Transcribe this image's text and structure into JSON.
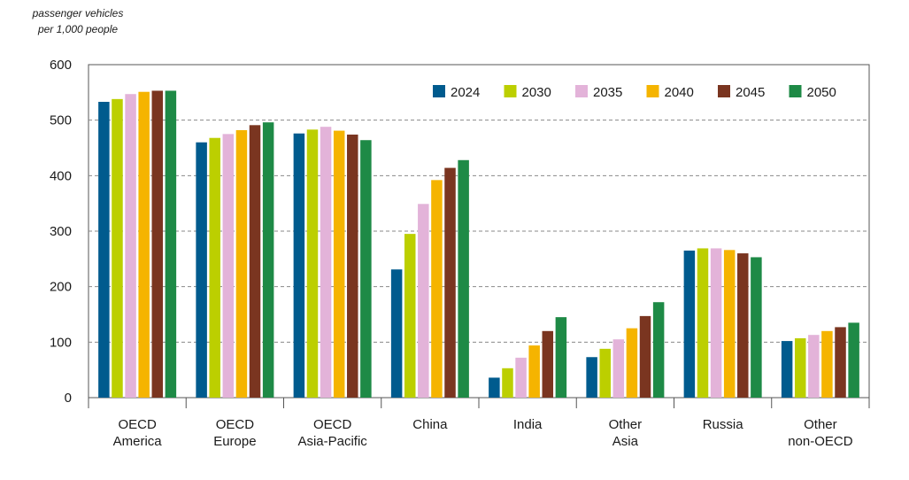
{
  "chart_data": {
    "type": "bar",
    "title": "",
    "ylabel_lines": [
      "passenger vehicles",
      "per 1,000 people"
    ],
    "xlabel": "",
    "ylim": [
      0,
      600
    ],
    "yticks": [
      0,
      100,
      200,
      300,
      400,
      500,
      600
    ],
    "grid": "horizontal-dashed",
    "legend_position": "top-right",
    "categories": [
      [
        "OECD",
        "America"
      ],
      [
        "OECD",
        "Europe"
      ],
      [
        "OECD",
        "Asia-Pacific"
      ],
      [
        "China"
      ],
      [
        "India"
      ],
      [
        "Other",
        "Asia"
      ],
      [
        "Russia"
      ],
      [
        "Other",
        "non-OECD"
      ]
    ],
    "series": [
      {
        "name": "2024",
        "color": "#005b8e",
        "values": [
          533,
          460,
          476,
          231,
          36,
          73,
          265,
          102
        ]
      },
      {
        "name": "2030",
        "color": "#bccf00",
        "values": [
          538,
          468,
          483,
          295,
          53,
          88,
          269,
          107
        ]
      },
      {
        "name": "2035",
        "color": "#e3b3d9",
        "values": [
          547,
          475,
          488,
          349,
          72,
          105,
          269,
          113
        ]
      },
      {
        "name": "2040",
        "color": "#f5b400",
        "values": [
          551,
          482,
          481,
          392,
          94,
          125,
          266,
          120
        ]
      },
      {
        "name": "2045",
        "color": "#7a3520",
        "values": [
          553,
          491,
          474,
          414,
          120,
          147,
          260,
          127
        ]
      },
      {
        "name": "2050",
        "color": "#1e8a46",
        "values": [
          553,
          496,
          464,
          428,
          145,
          172,
          253,
          135
        ]
      }
    ]
  }
}
